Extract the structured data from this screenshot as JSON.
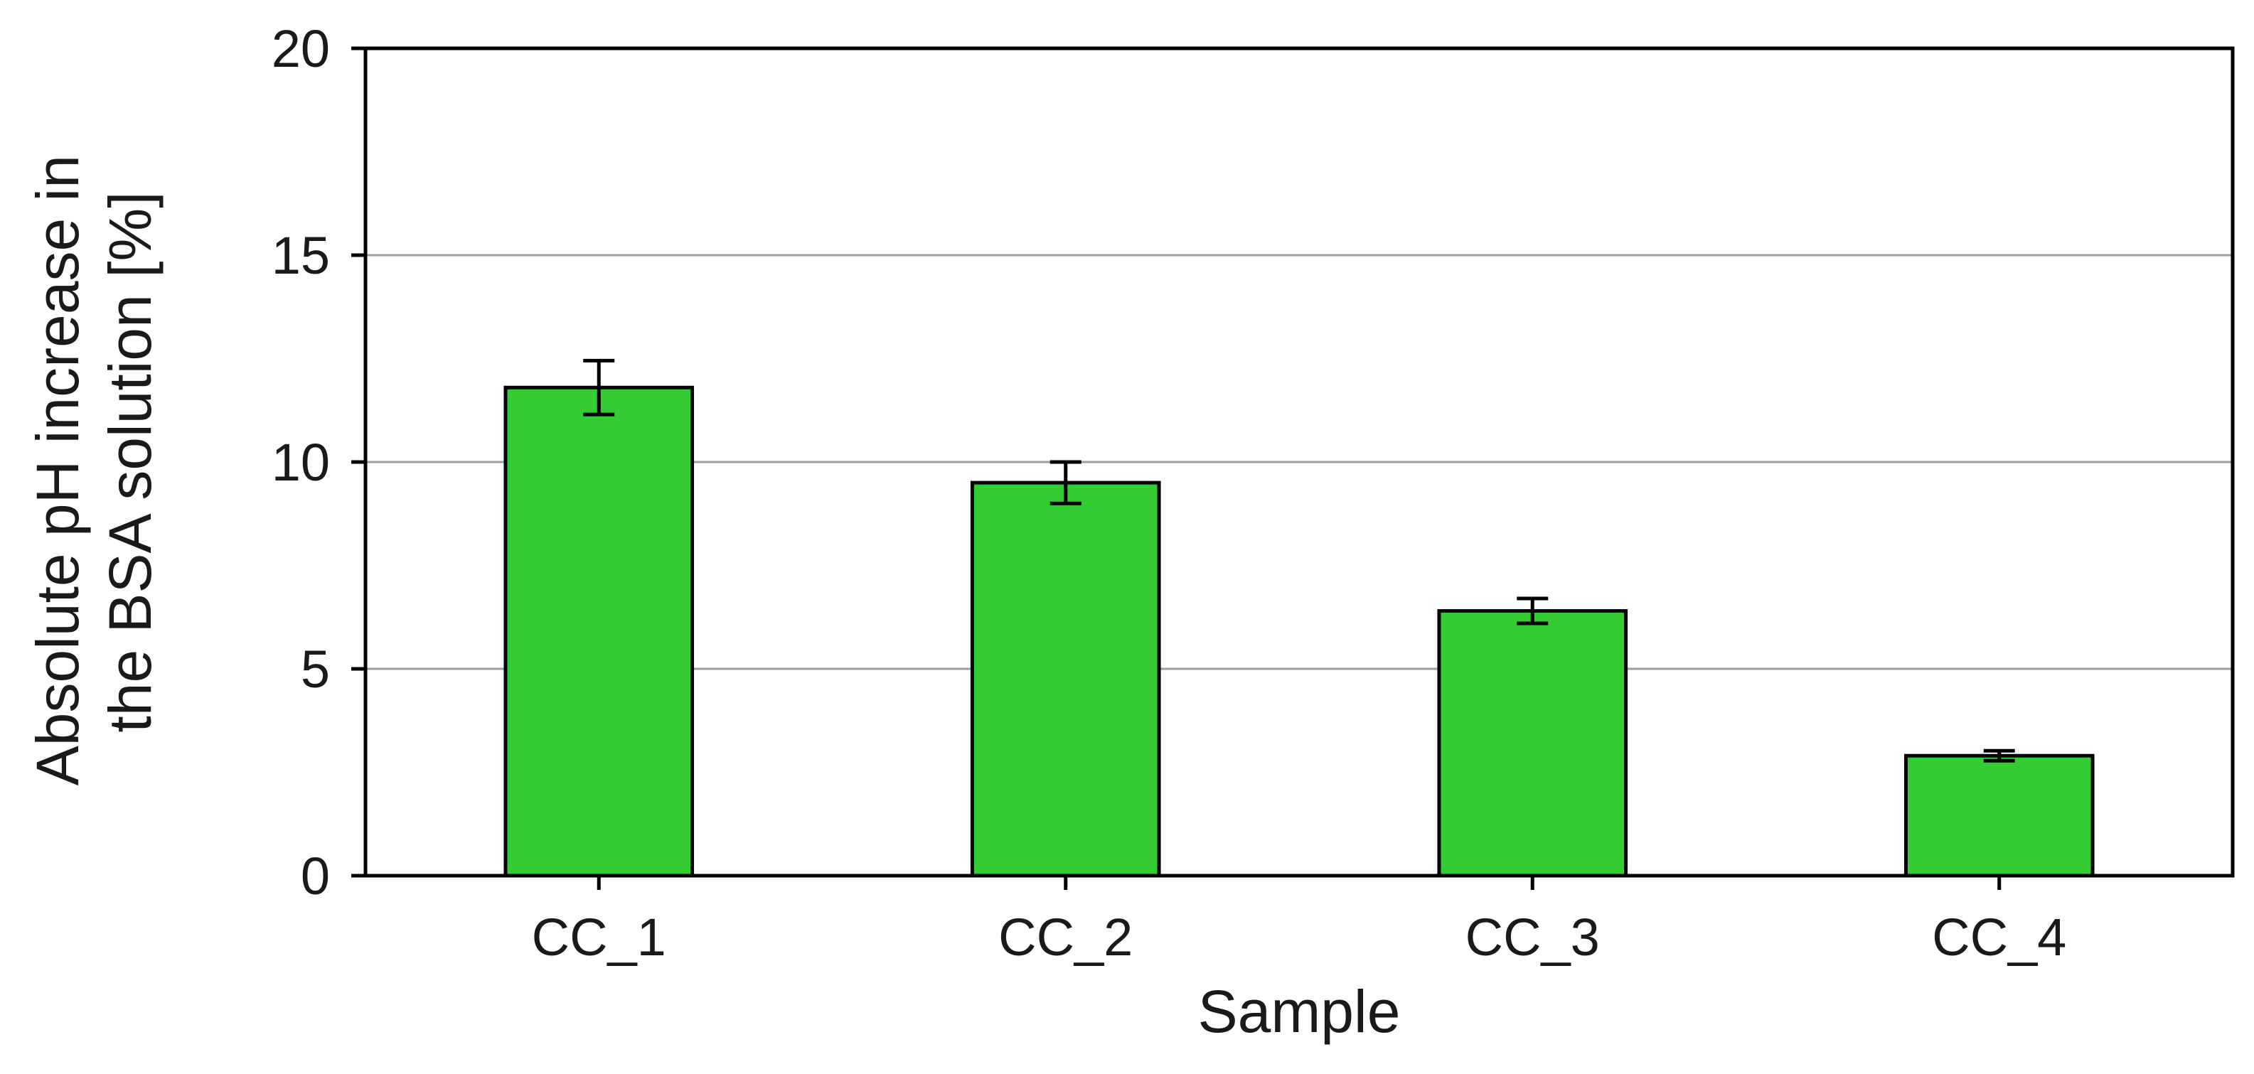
{
  "chart_data": {
    "type": "bar",
    "title": "",
    "xlabel": "Sample",
    "ylabel_lines": [
      "Absolute pH increase in",
      "the BSA solution [%]"
    ],
    "categories": [
      "CC_1",
      "CC_2",
      "CC_3",
      "CC_4"
    ],
    "values": [
      11.8,
      9.5,
      6.4,
      2.9
    ],
    "errors": [
      0.65,
      0.5,
      0.3,
      0.12
    ],
    "ylim": [
      0,
      20
    ],
    "yticks": [
      0,
      5,
      10,
      15,
      20
    ],
    "grid": true,
    "legend": "none",
    "bar_color": "#33cc33",
    "bar_edge_color": "#000000",
    "grid_color": "#9e9e9e"
  }
}
